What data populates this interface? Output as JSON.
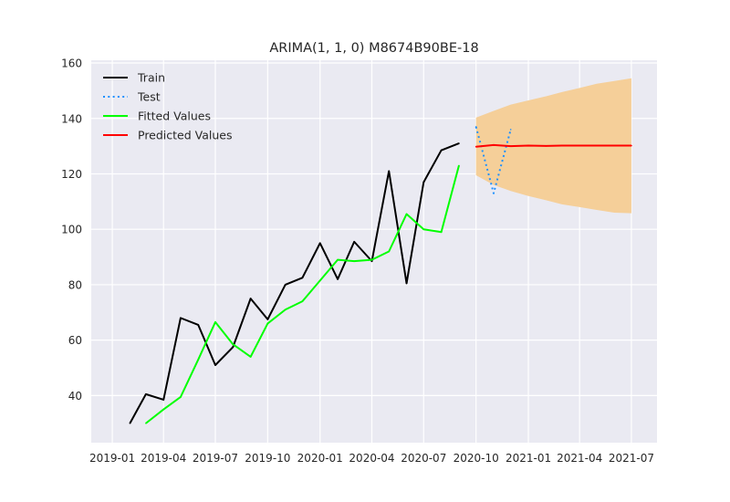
{
  "chart_data": {
    "type": "line",
    "title": "ARIMA(1, 1, 0) M8674B90BE-18",
    "xlabel": "",
    "ylabel": "",
    "grid": true,
    "legend_position": "top-left",
    "xlim": [
      "2018-11-25",
      "2021-08-15"
    ],
    "ylim": [
      23,
      161
    ],
    "x_ticks": [
      "2019-01",
      "2019-04",
      "2019-07",
      "2019-10",
      "2020-01",
      "2020-04",
      "2020-07",
      "2020-10",
      "2021-01",
      "2021-04",
      "2021-07"
    ],
    "y_ticks": [
      40,
      60,
      80,
      100,
      120,
      140,
      160
    ],
    "series": [
      {
        "name": "Train",
        "style": "solid",
        "color": "#000000",
        "x": [
          "2019-02-01",
          "2019-03-01",
          "2019-04-01",
          "2019-05-01",
          "2019-06-01",
          "2019-07-01",
          "2019-08-01",
          "2019-09-01",
          "2019-10-01",
          "2019-11-01",
          "2019-12-01",
          "2020-01-01",
          "2020-02-01",
          "2020-03-01",
          "2020-04-01",
          "2020-05-01",
          "2020-06-01",
          "2020-07-01",
          "2020-08-01",
          "2020-09-01"
        ],
        "y": [
          30.0,
          40.5,
          38.5,
          68.0,
          65.5,
          51.0,
          57.5,
          75.0,
          67.5,
          80.0,
          82.5,
          95.0,
          82.0,
          95.5,
          88.5,
          121.0,
          80.5,
          117.0,
          128.5,
          131.0
        ]
      },
      {
        "name": "Test",
        "style": "dotted",
        "color": "#1e90ff",
        "x": [
          "2020-10-01",
          "2020-11-01",
          "2020-12-01"
        ],
        "y": [
          137.0,
          113.0,
          136.0
        ]
      },
      {
        "name": "Fitted Values",
        "style": "solid",
        "color": "#00ff00",
        "x": [
          "2019-03-01",
          "2019-04-01",
          "2019-05-01",
          "2019-06-01",
          "2019-07-01",
          "2019-08-01",
          "2019-09-01",
          "2019-10-01",
          "2019-11-01",
          "2019-12-01",
          "2020-01-01",
          "2020-02-01",
          "2020-03-01",
          "2020-04-01",
          "2020-05-01",
          "2020-06-01",
          "2020-07-01",
          "2020-08-01",
          "2020-09-01"
        ],
        "y": [
          30.0,
          35.0,
          39.5,
          53.0,
          66.5,
          58.5,
          54.0,
          66.0,
          71.0,
          74.0,
          81.5,
          89.0,
          88.5,
          89.0,
          92.0,
          105.5,
          100.0,
          99.0,
          123.0
        ]
      },
      {
        "name": "Predicted Values",
        "style": "solid",
        "color": "#ff0000",
        "x": [
          "2020-10-01",
          "2020-11-01",
          "2020-12-01",
          "2021-01-01",
          "2021-02-01",
          "2021-03-01",
          "2021-04-01",
          "2021-05-01",
          "2021-06-01",
          "2021-07-01"
        ],
        "y": [
          129.8,
          130.4,
          130.0,
          130.2,
          130.1,
          130.2,
          130.2,
          130.2,
          130.2,
          130.2
        ]
      }
    ],
    "confidence_band": {
      "color": "#f5cf99",
      "x": [
        "2020-10-01",
        "2020-11-01",
        "2020-12-01",
        "2021-01-01",
        "2021-02-01",
        "2021-03-01",
        "2021-04-01",
        "2021-05-01",
        "2021-06-01",
        "2021-07-01"
      ],
      "lower": [
        119.5,
        116.0,
        113.8,
        112.0,
        110.5,
        109.0,
        108.0,
        107.0,
        106.0,
        105.8
      ],
      "upper": [
        140.3,
        142.7,
        145.0,
        146.5,
        148.0,
        149.5,
        151.0,
        152.5,
        153.5,
        154.5
      ]
    },
    "colors": {
      "plot_background": "#eaeaf2",
      "grid": "#ffffff",
      "text": "#262626"
    }
  }
}
